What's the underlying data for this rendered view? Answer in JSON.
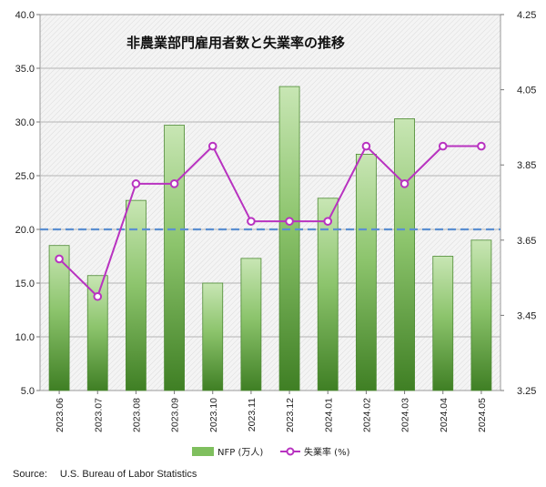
{
  "chart_data": {
    "type": "bar",
    "title": "非農業部門雇用者数と失業率の推移",
    "categories": [
      "2023.06",
      "2023.07",
      "2023.08",
      "2023.09",
      "2023.10",
      "2023.11",
      "2023.12",
      "2024.01",
      "2024.02",
      "2024.03",
      "2024.04",
      "2024.05"
    ],
    "series": [
      {
        "name": "NFP (万人)",
        "type": "bar",
        "axis": "left",
        "color": "#5a9e3e",
        "values": [
          18.5,
          15.7,
          22.7,
          29.7,
          15.0,
          17.3,
          33.3,
          22.9,
          27.0,
          30.3,
          17.5,
          19.0
        ]
      },
      {
        "name": "失業率 (%)",
        "type": "line",
        "axis": "right",
        "color": "#b832c0",
        "values": [
          3.6,
          3.5,
          3.8,
          3.8,
          3.9,
          3.7,
          3.7,
          3.7,
          3.9,
          3.8,
          3.9,
          3.9
        ]
      }
    ],
    "ylim_left": [
      5.0,
      40.0
    ],
    "ylim_right": [
      3.25,
      4.25
    ],
    "yticks_left": [
      "5.0",
      "10.0",
      "15.0",
      "20.0",
      "25.0",
      "30.0",
      "35.0",
      "40.0"
    ],
    "yticks_right": [
      "3.25",
      "3.45",
      "3.65",
      "3.85",
      "4.05",
      "4.25"
    ],
    "reference_line": {
      "value": 20.0,
      "axis": "left",
      "style": "dashed",
      "color": "#5b8fd1"
    },
    "grid": true,
    "legend_position": "bottom-right"
  },
  "source": {
    "label": "Source:",
    "text": "U.S. Bureau of Labor Statistics"
  }
}
